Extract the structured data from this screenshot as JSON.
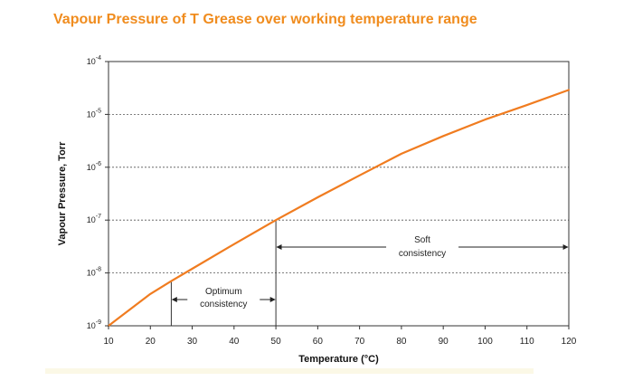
{
  "chart_data": {
    "type": "line",
    "title": "Vapour Pressure of T Grease over working temperature range",
    "xlabel": "Temperature (°C)",
    "ylabel": "Vapour Pressure, Torr",
    "xlim": [
      10,
      120
    ],
    "ylim": [
      1e-09,
      0.0001
    ],
    "y_scale": "log",
    "grid": "horizontal dotted",
    "x_ticks": [
      "10",
      "20",
      "30",
      "40",
      "50",
      "60",
      "70",
      "80",
      "90",
      "100",
      "110",
      "120"
    ],
    "y_ticks": [
      {
        "value": 1e-09,
        "base": "10",
        "exp": "-9"
      },
      {
        "value": 1e-08,
        "base": "10",
        "exp": "-8"
      },
      {
        "value": 1e-07,
        "base": "10",
        "exp": "-7"
      },
      {
        "value": 1e-06,
        "base": "10",
        "exp": "-6"
      },
      {
        "value": 1e-05,
        "base": "10",
        "exp": "-5"
      },
      {
        "value": 0.0001,
        "base": "10",
        "exp": "-4"
      }
    ],
    "series": [
      {
        "color": "#f07c20",
        "x": [
          10,
          20,
          25,
          30,
          40,
          50,
          60,
          70,
          80,
          90,
          100,
          110,
          120
        ],
        "y": [
          1e-09,
          4e-09,
          7e-09,
          1.2e-08,
          3.5e-08,
          1e-07,
          2.7e-07,
          7e-07,
          1.8e-06,
          3.9e-06,
          8e-06,
          1.5e-05,
          2.9e-05
        ]
      }
    ],
    "annotations": [
      {
        "name": "optimum",
        "lines": [
          "Optimum",
          "consistency"
        ],
        "x_range": [
          25,
          50
        ]
      },
      {
        "name": "soft",
        "lines": [
          "Soft",
          "consistency"
        ],
        "x_range": [
          50,
          120
        ]
      }
    ]
  }
}
